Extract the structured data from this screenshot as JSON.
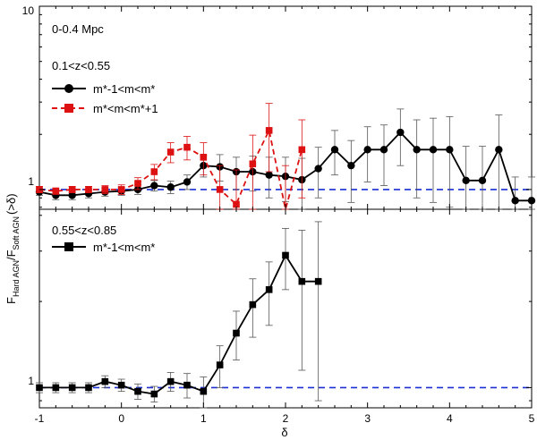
{
  "chart_data": [
    {
      "type": "line",
      "panel": "top",
      "region_label": "0-0.4 Mpc",
      "redshift_label": "0.1<z<0.55",
      "x_range": [
        -1,
        5
      ],
      "y_scale": "log",
      "y_range": [
        0.78,
        10
      ],
      "y_tick_labels": [
        "10",
        "1"
      ],
      "reference_line": 1,
      "series": [
        {
          "name": "m*-1<m<m*",
          "color": "#000000",
          "marker": "circle",
          "line_style": "solid",
          "x": [
            -1.0,
            -0.8,
            -0.6,
            -0.4,
            -0.2,
            0.0,
            0.2,
            0.4,
            0.6,
            0.8,
            1.0,
            1.2,
            1.4,
            1.6,
            1.8,
            2.0,
            2.2,
            2.4,
            2.6,
            2.8,
            3.0,
            3.2,
            3.4,
            3.6,
            3.8,
            4.0,
            4.2,
            4.4,
            4.6,
            4.8,
            5.0
          ],
          "y": [
            0.97,
            0.93,
            0.93,
            0.95,
            0.97,
            0.98,
            1.0,
            1.05,
            1.03,
            1.1,
            1.35,
            1.33,
            1.25,
            1.25,
            1.2,
            1.18,
            1.13,
            1.3,
            1.65,
            1.35,
            1.65,
            1.65,
            2.05,
            1.65,
            1.65,
            1.65,
            1.12,
            1.12,
            1.65,
            0.87,
            0.87
          ],
          "err": [
            0.04,
            0.05,
            0.05,
            0.05,
            0.05,
            0.05,
            0.06,
            0.07,
            0.08,
            0.1,
            0.18,
            0.22,
            0.25,
            0.27,
            0.3,
            0.32,
            0.35,
            0.4,
            0.45,
            0.5,
            0.55,
            0.6,
            0.7,
            0.75,
            0.8,
            0.85,
            0.6,
            0.6,
            0.9,
            0.3,
            0.3
          ]
        },
        {
          "name": "m*<m<m*+1",
          "color": "#dd1111",
          "marker": "square",
          "line_style": "dashed",
          "x": [
            -1.0,
            -0.8,
            -0.6,
            -0.4,
            -0.2,
            0.0,
            0.2,
            0.4,
            0.6,
            0.8,
            1.0,
            1.2,
            1.4,
            1.6,
            1.8,
            2.0,
            2.2
          ],
          "y": [
            1.0,
            0.98,
            1.0,
            1.0,
            1.0,
            1.0,
            1.08,
            1.25,
            1.6,
            1.7,
            1.5,
            1.0,
            0.83,
            1.38,
            2.1,
            0.75,
            1.65
          ],
          "err": [
            0.04,
            0.04,
            0.04,
            0.04,
            0.05,
            0.06,
            0.08,
            0.12,
            0.2,
            0.25,
            0.3,
            0.35,
            0.45,
            0.6,
            0.85,
            0.6,
            0.75
          ]
        }
      ]
    },
    {
      "type": "line",
      "panel": "bottom",
      "redshift_label": "0.55<z<0.85",
      "x_range": [
        -1,
        5
      ],
      "y_scale": "log",
      "y_range": [
        0.85,
        4.2
      ],
      "y_tick_labels": [
        "1"
      ],
      "x_tick_labels": [
        "-1",
        "0",
        "1",
        "2",
        "3",
        "4",
        "5"
      ],
      "xlabel": "δ",
      "reference_line": 1,
      "series": [
        {
          "name": "m*-1<m<m*",
          "color": "#000000",
          "marker": "square",
          "line_style": "solid",
          "x": [
            -1.0,
            -0.8,
            -0.6,
            -0.4,
            -0.2,
            0.0,
            0.2,
            0.4,
            0.6,
            0.8,
            1.0,
            1.2,
            1.4,
            1.6,
            1.8,
            2.0,
            2.2,
            2.4
          ],
          "y": [
            1.0,
            1.0,
            1.0,
            1.0,
            1.05,
            1.02,
            0.97,
            0.95,
            1.05,
            1.02,
            0.97,
            1.2,
            1.55,
            1.95,
            2.2,
            2.9,
            2.35,
            2.35
          ],
          "err": [
            0.04,
            0.04,
            0.04,
            0.04,
            0.05,
            0.05,
            0.06,
            0.06,
            0.08,
            0.1,
            0.12,
            0.2,
            0.3,
            0.45,
            0.55,
            0.7,
            1.2,
            1.45
          ]
        }
      ]
    }
  ],
  "shared": {
    "ylabel_parts": [
      "F",
      "Hard AGN",
      "/F",
      "Soft AGN",
      "(>δ)"
    ],
    "reference_line_color": "#1a2fd6"
  }
}
